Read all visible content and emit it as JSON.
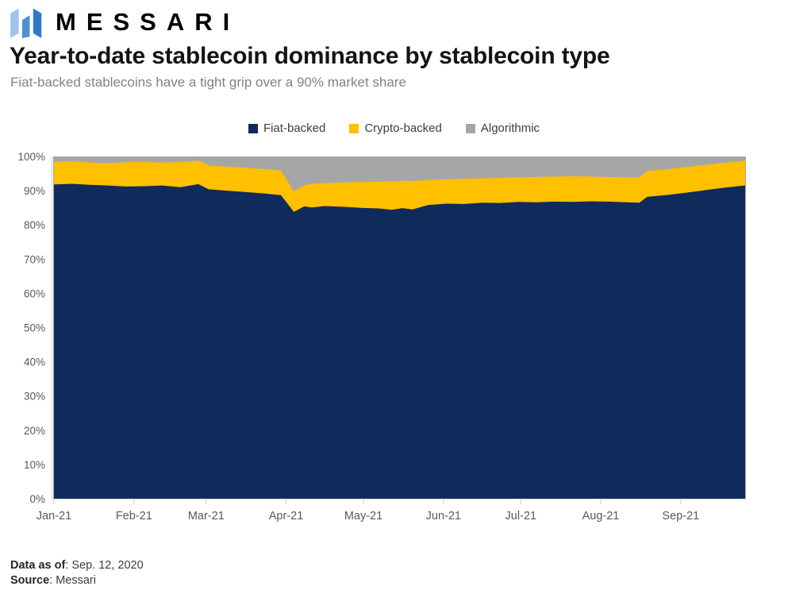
{
  "header": {
    "brand": "MESSARI"
  },
  "title": "Year-to-date stablecoin dominance by stablecoin type",
  "subtitle": "Fiat-backed stablecoins have a tight grip over a 90% market share",
  "legend": {
    "items": [
      {
        "label": "Fiat-backed",
        "color": "#102a5c"
      },
      {
        "label": "Crypto-backed",
        "color": "#ffc000"
      },
      {
        "label": "Algorithmic",
        "color": "#a6a6a6"
      }
    ]
  },
  "footer": {
    "data_as_of_label": "Data as of",
    "data_as_of_rest": ": Sep. 12, 2020",
    "source_label": "Source",
    "source_rest": ": Messari"
  },
  "colors": {
    "fiat_backed": "#102a5c",
    "crypto_backed": "#ffc000",
    "algorithmic": "#a6a6a6",
    "axis_line": "#d6d6d6",
    "tick_mark": "#c9c9c9",
    "axis_label": "#595959",
    "subtitle_gray": "#828282",
    "logo_light_blue": "#9fc3e9",
    "logo_mid_blue": "#4f8fd2",
    "logo_dark_blue": "#2e79c6"
  },
  "chart_data": {
    "type": "area",
    "stacked": true,
    "title": "Year-to-date stablecoin dominance by stablecoin type",
    "xlabel": "",
    "ylabel": "",
    "unit": "percent of stablecoin market share",
    "ylim": [
      0,
      100
    ],
    "grid": false,
    "legend_position": "top-center",
    "x_tick_labels": [
      "Jan-21",
      "Feb-21",
      "Mar-21",
      "Apr-21",
      "May-21",
      "Jun-21",
      "Jul-21",
      "Aug-21",
      "Sep-21"
    ],
    "month_tick_days": [
      0,
      31,
      59,
      90,
      120,
      151,
      181,
      212,
      243
    ],
    "y_tick_labels": [
      "0%",
      "10%",
      "20%",
      "30%",
      "40%",
      "50%",
      "60%",
      "70%",
      "80%",
      "90%",
      "100%"
    ],
    "x_range_days": [
      0,
      268
    ],
    "days": [
      0,
      7,
      14,
      21,
      28,
      35,
      42,
      49,
      56,
      60,
      67,
      74,
      81,
      88,
      93,
      97,
      100,
      105,
      112,
      119,
      126,
      131,
      135,
      139,
      145,
      152,
      159,
      166,
      173,
      180,
      187,
      194,
      201,
      208,
      215,
      222,
      227,
      230,
      237,
      244,
      251,
      258,
      264,
      268
    ],
    "series": [
      {
        "name": "Fiat-backed",
        "color": "#102a5c",
        "values": [
          91.8,
          92.0,
          91.7,
          91.5,
          91.2,
          91.3,
          91.5,
          91.0,
          91.9,
          90.4,
          90.0,
          89.6,
          89.2,
          88.7,
          83.8,
          85.4,
          85.1,
          85.5,
          85.3,
          85.0,
          84.8,
          84.4,
          84.9,
          84.5,
          85.8,
          86.2,
          86.1,
          86.5,
          86.4,
          86.7,
          86.6,
          86.8,
          86.7,
          86.9,
          86.8,
          86.6,
          86.5,
          88.2,
          88.7,
          89.3,
          90.0,
          90.7,
          91.2,
          91.5
        ]
      },
      {
        "name": "Crypto-backed",
        "color": "#ffc000",
        "values": [
          6.6,
          6.6,
          6.5,
          6.5,
          7.1,
          7.1,
          6.7,
          7.3,
          6.9,
          6.9,
          7.0,
          7.1,
          7.1,
          7.2,
          6.0,
          6.2,
          6.9,
          6.7,
          7.1,
          7.5,
          7.8,
          8.3,
          8.0,
          8.3,
          7.3,
          7.1,
          7.4,
          7.1,
          7.3,
          7.2,
          7.4,
          7.3,
          7.5,
          7.2,
          7.2,
          7.3,
          7.3,
          7.6,
          7.5,
          7.5,
          7.4,
          7.3,
          7.3,
          7.3
        ]
      },
      {
        "name": "Algorithmic",
        "color": "#a6a6a6",
        "values": [
          1.6,
          1.4,
          1.8,
          2.0,
          1.7,
          1.6,
          1.8,
          1.7,
          1.2,
          2.7,
          3.0,
          3.3,
          3.7,
          4.1,
          10.2,
          8.4,
          8.0,
          7.8,
          7.6,
          7.5,
          7.4,
          7.3,
          7.1,
          7.2,
          6.9,
          6.7,
          6.5,
          6.4,
          6.3,
          6.1,
          6.0,
          5.9,
          5.8,
          5.9,
          6.0,
          6.1,
          6.2,
          4.2,
          3.8,
          3.2,
          2.6,
          2.0,
          1.5,
          1.2
        ]
      }
    ]
  }
}
